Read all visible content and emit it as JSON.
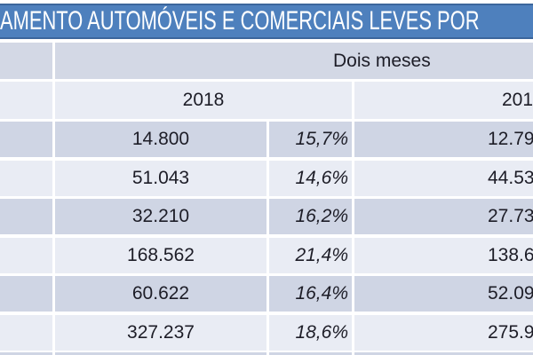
{
  "title": {
    "text": "AMENTO AUTOMÓVEIS E COMERCIAIS LEVES POR"
  },
  "table": {
    "group_header": "Dois meses",
    "col_left_year": "2018",
    "col_right_year_visible": "201",
    "rows": [
      {
        "units": "14.800",
        "share": "15,7%",
        "right_units_visible": "12.79"
      },
      {
        "units": "51.043",
        "share": "14,6%",
        "right_units_visible": "44.53"
      },
      {
        "units": "32.210",
        "share": "16,2%",
        "right_units_visible": "27.73"
      },
      {
        "units": "168.562",
        "share": "21,4%",
        "right_units_visible": "138.6"
      },
      {
        "units": "60.622",
        "share": "16,4%",
        "right_units_visible": "52.09"
      },
      {
        "units": "327.237",
        "share": "18,6%",
        "right_units_visible": "275.9"
      }
    ]
  },
  "chart_data": {
    "type": "table",
    "title": "AMENTO AUTOMÓVEIS E COMERCIAIS LEVES POR",
    "group_header": "Dois meses",
    "visible_columns": [
      "2018 value",
      "2018 percent (italic)",
      "201 value (year truncated at right edge)"
    ],
    "rows": [
      [
        "14.800",
        "15,7%",
        "12.79"
      ],
      [
        "51.043",
        "14,6%",
        "44.53"
      ],
      [
        "32.210",
        "16,2%",
        "27.73"
      ],
      [
        "168.562",
        "21,4%",
        "138.6"
      ],
      [
        "60.622",
        "16,4%",
        "52.09"
      ],
      [
        "327.237",
        "18,6%",
        "275.9"
      ]
    ],
    "layout_hints": "slide cropped on left and right; leftmost label column and rightmost year column partially cut off; banded rows"
  },
  "colors": {
    "background": "#ffffff",
    "title_bar": "#4e80bd",
    "title_bar_border": "#3c669c",
    "title_text": "#ffffff",
    "band_header": "#d3d8e5",
    "band_dark": "#cfd5e4",
    "band_light": "#e9ecf4",
    "table_text": "#1d1d27"
  }
}
